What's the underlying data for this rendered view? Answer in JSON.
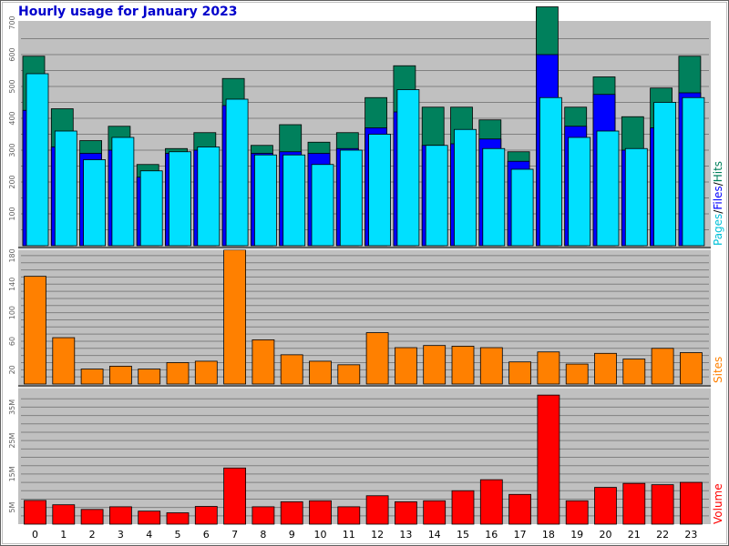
{
  "title": "Hourly usage for January 2023",
  "colors": {
    "hits": "#00805c",
    "files": "#0000ff",
    "pages": "#00e0ff",
    "sites": "#ff8000",
    "volume": "#ff0000",
    "panel": "#c0c0c0",
    "grid": "#808080"
  },
  "chart_data": [
    {
      "type": "bar",
      "categories": [
        "0",
        "1",
        "2",
        "3",
        "4",
        "5",
        "6",
        "7",
        "8",
        "9",
        "10",
        "11",
        "12",
        "13",
        "14",
        "15",
        "16",
        "17",
        "18",
        "19",
        "20",
        "21",
        "22",
        "23"
      ],
      "legend": {
        "pages": "Pages",
        "sep1": "/",
        "files": "Files",
        "sep2": "/",
        "hits": "Hits"
      },
      "yticks": [
        "100",
        "200",
        "300",
        "400",
        "500",
        "600",
        "700"
      ],
      "ylim": [
        0,
        700
      ],
      "series": [
        {
          "name": "Hits",
          "values": [
            595,
            430,
            330,
            375,
            255,
            305,
            355,
            525,
            315,
            380,
            325,
            355,
            465,
            565,
            435,
            435,
            395,
            295,
            750,
            435,
            530,
            405,
            495,
            595
          ]
        },
        {
          "name": "Files",
          "values": [
            425,
            310,
            290,
            300,
            215,
            290,
            300,
            440,
            290,
            295,
            290,
            305,
            370,
            420,
            315,
            320,
            335,
            265,
            600,
            375,
            475,
            300,
            370,
            480
          ]
        },
        {
          "name": "Pages",
          "values": [
            540,
            360,
            270,
            340,
            235,
            295,
            310,
            460,
            285,
            285,
            255,
            300,
            350,
            490,
            315,
            365,
            305,
            240,
            465,
            340,
            360,
            305,
            450,
            465
          ]
        }
      ]
    },
    {
      "type": "bar",
      "categories": [
        "0",
        "1",
        "2",
        "3",
        "4",
        "5",
        "6",
        "7",
        "8",
        "9",
        "10",
        "11",
        "12",
        "13",
        "14",
        "15",
        "16",
        "17",
        "18",
        "19",
        "20",
        "21",
        "22",
        "23"
      ],
      "legend": {
        "sites": "Sites"
      },
      "yticks": [
        "20",
        "60",
        "100",
        "140",
        "180"
      ],
      "ylim": [
        0,
        185
      ],
      "series": [
        {
          "name": "Sites",
          "values": [
            151,
            65,
            21,
            25,
            21,
            30,
            32,
            188,
            62,
            41,
            32,
            27,
            72,
            51,
            54,
            53,
            51,
            31,
            45,
            28,
            43,
            35,
            50,
            44
          ]
        }
      ]
    },
    {
      "type": "bar",
      "categories": [
        "0",
        "1",
        "2",
        "3",
        "4",
        "5",
        "6",
        "7",
        "8",
        "9",
        "10",
        "11",
        "12",
        "13",
        "14",
        "15",
        "16",
        "17",
        "18",
        "19",
        "20",
        "21",
        "22",
        "23"
      ],
      "xticks": [
        "0",
        "1",
        "2",
        "3",
        "4",
        "5",
        "6",
        "7",
        "8",
        "9",
        "10",
        "11",
        "12",
        "13",
        "14",
        "15",
        "16",
        "17",
        "18",
        "19",
        "20",
        "21",
        "22",
        "23"
      ],
      "legend": {
        "volume": "Volume"
      },
      "yticks": [
        "5M",
        "15M",
        "25M",
        "35M"
      ],
      "ylim": [
        0,
        40
      ],
      "series": [
        {
          "name": "Volume",
          "values": [
            7.1,
            5.8,
            4.4,
            5.2,
            3.9,
            3.4,
            5.3,
            16.8,
            5.2,
            6.7,
            7.0,
            5.2,
            8.5,
            6.7,
            7.0,
            10.0,
            13.3,
            8.9,
            38.6,
            7.0,
            11.0,
            12.2,
            11.8,
            12.5
          ]
        }
      ]
    }
  ]
}
